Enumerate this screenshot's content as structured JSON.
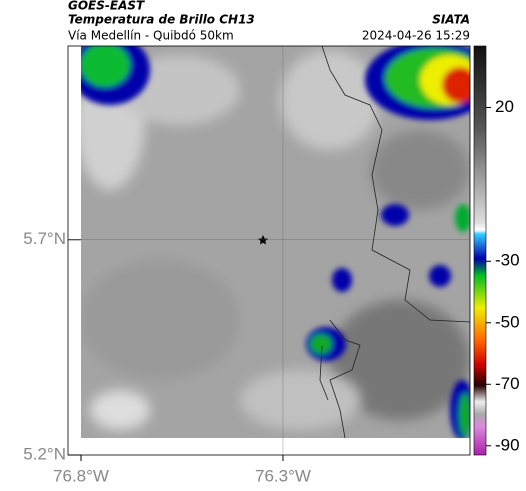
{
  "header": {
    "satellite": "GOES-EAST",
    "product": "Temperatura de Brillo CH13",
    "source": "SIATA",
    "route": "Vía Medellín - Quibdó 50km",
    "timestamp": "2024-04-26 15:29"
  },
  "map": {
    "lonlim": [
      -76.8,
      -75.837
    ],
    "latlim": [
      5.2,
      6.15
    ],
    "lat_ticks": [
      {
        "value": 5.7,
        "label": "5.7°N"
      },
      {
        "value": 5.2,
        "label": "5.2°N"
      }
    ],
    "lon_ticks": [
      {
        "value": -76.8,
        "label": "76.8°W"
      },
      {
        "value": -76.3,
        "label": "76.3°W"
      }
    ],
    "grid": true
  },
  "colorbar": {
    "clim": [
      40,
      -93
    ],
    "ticks": [
      20,
      -30,
      -50,
      -70,
      -90
    ]
  }
}
